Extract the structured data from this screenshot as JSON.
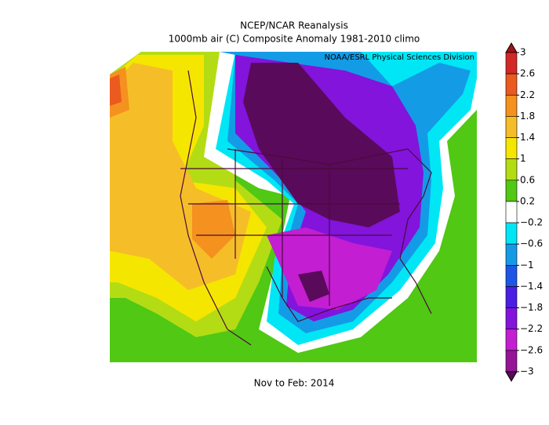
{
  "header": {
    "title": "NCEP/NCAR Reanalysis",
    "subtitle": "1000mb air (C) Composite Anomaly 1981-2010 climo",
    "credit": "NOAA/ESRL Physical Sciences Division"
  },
  "footer": {
    "period": "Nov to Feb: 2014"
  },
  "colorbar": {
    "ticks": [
      3,
      2.6,
      2.2,
      1.8,
      1.4,
      1,
      0.6,
      0.2,
      {
        "value": -0.2,
        "label": "−0.2"
      },
      {
        "value": -0.6,
        "label": "−0.6"
      },
      {
        "value": -1,
        "label": "−1"
      },
      {
        "value": -1.4,
        "label": "−1.4"
      },
      {
        "value": -1.8,
        "label": "−1.8"
      },
      {
        "value": -2.2,
        "label": "−2.2"
      },
      {
        "value": -2.6,
        "label": "−2.6"
      },
      {
        "value": -3,
        "label": "−3"
      }
    ],
    "colors": [
      "#a01414",
      "#d22828",
      "#eb5a1e",
      "#f5911e",
      "#f5be28",
      "#f5e600",
      "#b4dc14",
      "#50c814",
      "#ffffff",
      "#00e6f5",
      "#149be6",
      "#1e55e6",
      "#4b1ee6",
      "#8214dc",
      "#c31ed2",
      "#961496",
      "#5a0a5a"
    ]
  }
}
